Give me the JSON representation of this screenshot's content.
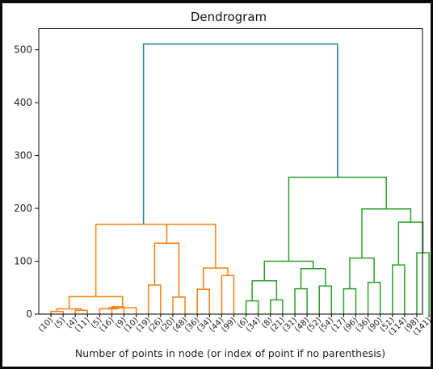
{
  "chart_data": {
    "type": "dendrogram",
    "title": "Dendrogram",
    "xlabel": "Number of points in node (or index of point if no parenthesis)",
    "ylabel": "",
    "ylim": [
      0,
      540
    ],
    "yticks": [
      0,
      100,
      200,
      300,
      400,
      500
    ],
    "grid": false,
    "colors": {
      "cluster_1": "#ff7f0e",
      "cluster_2": "#2ca02c",
      "root": "#1f77b4"
    },
    "leaves": [
      "(10)",
      "(5)",
      "(4)",
      "(11)",
      "(5)",
      "(16)",
      "(9)",
      "(10)",
      "(19)",
      "(26)",
      "(20)",
      "(48)",
      "(36)",
      "(34)",
      "(44)",
      "(99)",
      "(6)",
      "(34)",
      "(8)",
      "(21)",
      "(31)",
      "(48)",
      "(52)",
      "(54)",
      "(17)",
      "(96)",
      "(36)",
      "(90)",
      "(51)",
      "(114)",
      "(98)",
      "(141)"
    ],
    "merges": [
      {
        "a": "L0",
        "b": "L1",
        "h": 5,
        "color": "#ff7f0e"
      },
      {
        "a": "L2",
        "b": "L3",
        "h": 7,
        "color": "#ff7f0e"
      },
      {
        "a": "M0",
        "b": "M1",
        "h": 10,
        "color": "#ff7f0e"
      },
      {
        "a": "L5",
        "b": "L6",
        "h": 14,
        "color": "#ff7f0e"
      },
      {
        "a": "L4",
        "b": "M3",
        "h": 10,
        "color": "#ff7f0e"
      },
      {
        "a": "M4",
        "b": "L7",
        "h": 12,
        "color": "#ff7f0e"
      },
      {
        "a": "M2",
        "b": "M5",
        "h": 33,
        "color": "#ff7f0e"
      },
      {
        "a": "L8",
        "b": "L9",
        "h": 55,
        "color": "#ff7f0e"
      },
      {
        "a": "L10",
        "b": "L11",
        "h": 32,
        "color": "#ff7f0e"
      },
      {
        "a": "M7",
        "b": "M8",
        "h": 134,
        "color": "#ff7f0e"
      },
      {
        "a": "L12",
        "b": "L13",
        "h": 47,
        "color": "#ff7f0e"
      },
      {
        "a": "L14",
        "b": "L15",
        "h": 73,
        "color": "#ff7f0e"
      },
      {
        "a": "M10",
        "b": "M11",
        "h": 87,
        "color": "#ff7f0e"
      },
      {
        "a": "M9",
        "b": "M12",
        "h": 170,
        "color": "#ff7f0e"
      },
      {
        "a": "M6",
        "b": "M13",
        "h": 170,
        "color": "#ff7f0e"
      },
      {
        "a": "L16",
        "b": "L17",
        "h": 25,
        "color": "#2ca02c"
      },
      {
        "a": "L18",
        "b": "L19",
        "h": 27,
        "color": "#2ca02c"
      },
      {
        "a": "M15",
        "b": "M16",
        "h": 63,
        "color": "#2ca02c"
      },
      {
        "a": "L20",
        "b": "L21",
        "h": 48,
        "color": "#2ca02c"
      },
      {
        "a": "L22",
        "b": "L23",
        "h": 53,
        "color": "#2ca02c"
      },
      {
        "a": "M18",
        "b": "M19",
        "h": 86,
        "color": "#2ca02c"
      },
      {
        "a": "M17",
        "b": "M20",
        "h": 100,
        "color": "#2ca02c"
      },
      {
        "a": "L24",
        "b": "L25",
        "h": 48,
        "color": "#2ca02c"
      },
      {
        "a": "L26",
        "b": "L27",
        "h": 60,
        "color": "#2ca02c"
      },
      {
        "a": "M22",
        "b": "M23",
        "h": 106,
        "color": "#2ca02c"
      },
      {
        "a": "L28",
        "b": "L29",
        "h": 93,
        "color": "#2ca02c"
      },
      {
        "a": "L30",
        "b": "L31",
        "h": 116,
        "color": "#2ca02c"
      },
      {
        "a": "M25",
        "b": "M26",
        "h": 174,
        "color": "#2ca02c"
      },
      {
        "a": "M24",
        "b": "M27",
        "h": 199,
        "color": "#2ca02c"
      },
      {
        "a": "M21",
        "b": "M28",
        "h": 259,
        "color": "#2ca02c"
      },
      {
        "a": "M14",
        "b": "M29",
        "h": 511,
        "color": "#1f77b4"
      }
    ]
  }
}
